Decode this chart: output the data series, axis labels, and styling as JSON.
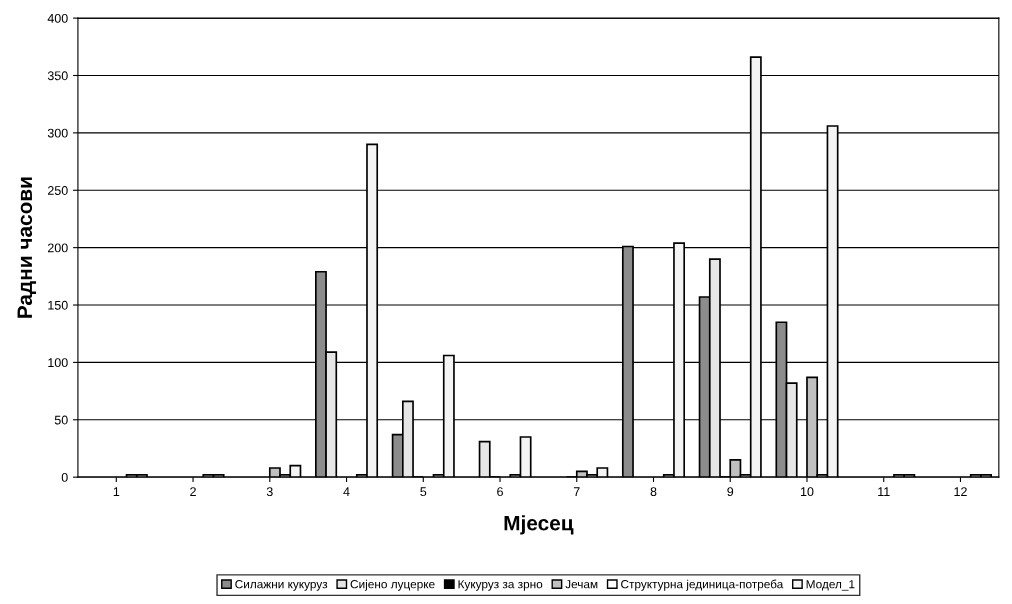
{
  "chart_data": {
    "type": "bar",
    "xlabel": "Мјесец",
    "ylabel": "Радни часови",
    "categories": [
      "1",
      "2",
      "3",
      "4",
      "5",
      "6",
      "7",
      "8",
      "9",
      "10",
      "11",
      "12"
    ],
    "series": [
      {
        "name": "Силажни кукуруз",
        "color": "#8c8c8c",
        "values": [
          null,
          null,
          null,
          179,
          37,
          null,
          null,
          201,
          157,
          135,
          null,
          null
        ]
      },
      {
        "name": "Сијено луцерке",
        "color": "#e6e6e6",
        "values": [
          null,
          null,
          null,
          109,
          66,
          31,
          null,
          null,
          190,
          82,
          null,
          null
        ]
      },
      {
        "name": "Кукуруз за зрно",
        "color": "#000000",
        "values": [
          null,
          null,
          null,
          null,
          0,
          0,
          0,
          null,
          0,
          null,
          null,
          null
        ]
      },
      {
        "name": "Јечам",
        "color": "#c0c0c0",
        "values": [
          null,
          null,
          8,
          null,
          null,
          null,
          5,
          null,
          15,
          87,
          null,
          null
        ]
      },
      {
        "name": "Структурна јединица-потреба",
        "color": "#ffffff",
        "values": [
          2,
          2,
          2,
          2,
          2,
          2,
          2,
          2,
          2,
          2,
          2,
          2
        ]
      },
      {
        "name": "Модел_1",
        "color": "#f4f4f4",
        "values": [
          2,
          2,
          10,
          290,
          106,
          35,
          8,
          204,
          366,
          306,
          2,
          2
        ]
      }
    ],
    "ylim": [
      0,
      400
    ],
    "yticks": [
      0,
      50,
      100,
      150,
      200,
      250,
      300,
      350,
      400
    ],
    "grid": "y",
    "legend": "bottom"
  }
}
